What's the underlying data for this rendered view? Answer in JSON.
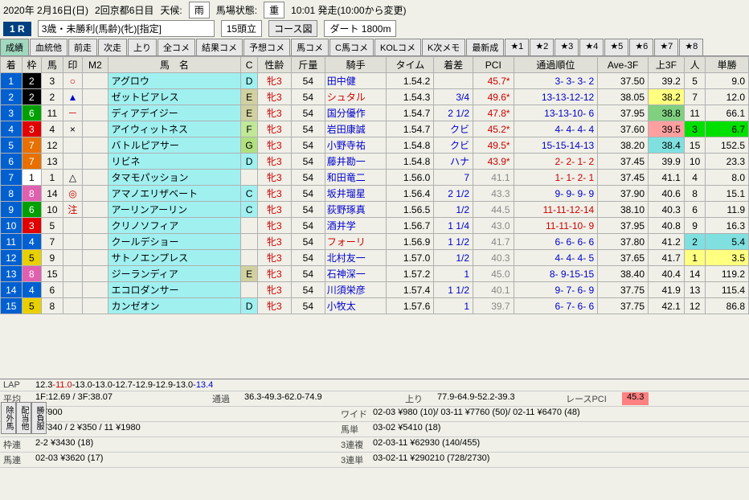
{
  "header": {
    "date": "2020年 2月16日(日)",
    "meeting": "2回京都6日目",
    "weather_label": "天候:",
    "weather": "雨",
    "track_label": "馬場状態:",
    "track": "重",
    "start_time": "10:01 発走(10:00から変更)",
    "race_num": "1 R",
    "condition": "3歳・未勝利(馬齢)(牝)[指定]",
    "head_count": "15頭立",
    "course_btn": "コース図",
    "surface": "ダート 1800m"
  },
  "tabs": [
    "成績",
    "血統他",
    "前走",
    "次走",
    "上り",
    "全コメ",
    "結果コメ",
    "予想コメ",
    "馬コメ",
    "C馬コメ",
    "KOLコメ",
    "K次メモ",
    "最新成",
    "★1",
    "★2",
    "★3",
    "★4",
    "★5",
    "★6",
    "★7",
    "★8"
  ],
  "columns": [
    "着",
    "枠",
    "馬",
    "印",
    "M2",
    "馬　名",
    "C",
    "性齢",
    "斤量",
    "騎手",
    "タイム",
    "着差",
    "PCI",
    "通過順位",
    "Ave-3F",
    "上3F",
    "人",
    "単勝"
  ],
  "rows": [
    {
      "pl": "1",
      "plbg": "#0060d0",
      "plfg": "#fff",
      "waku": "2",
      "wakuCls": "waku2",
      "uma": "3",
      "mark": "○",
      "m2": "",
      "name": "アグロウ",
      "c": "D",
      "cbg": "#a0f0f0",
      "sex": "牝3",
      "wt": "54",
      "jockey": "田中健",
      "time": "1.54.2",
      "diff": "",
      "pci": "45.7*",
      "pciRed": true,
      "pass": "3- 3- 3- 2",
      "ave": "37.50",
      "u3f": "39.2",
      "u3fbg": "",
      "pop": "5",
      "popbg": "",
      "odds": "9.0"
    },
    {
      "pl": "2",
      "plbg": "#0060d0",
      "plfg": "#fff",
      "waku": "2",
      "wakuCls": "waku2",
      "uma": "2",
      "mark": "▲",
      "m2": "",
      "name": "ゼットビアレス",
      "c": "E",
      "cbg": "#d0d0a0",
      "sex": "牝3",
      "wt": "54",
      "jockey": "シュタル",
      "time": "1.54.3",
      "diff": "3/4",
      "pci": "49.6*",
      "pciRed": true,
      "pass": "13-13-12-12",
      "ave": "38.05",
      "u3f": "38.2",
      "u3fbg": "#ffff80",
      "pop": "7",
      "popbg": "",
      "odds": "12.0"
    },
    {
      "pl": "3",
      "plbg": "#0060d0",
      "plfg": "#fff",
      "waku": "6",
      "wakuCls": "waku6",
      "uma": "11",
      "mark": "－",
      "m2": "",
      "name": "ディアデイジー",
      "c": "E",
      "cbg": "#d0d0a0",
      "sex": "牝3",
      "wt": "54",
      "jockey": "国分優作",
      "time": "1.54.7",
      "diff": "2 1/2",
      "pci": "47.8*",
      "pciRed": true,
      "pass": "13-13-10- 6",
      "ave": "37.95",
      "u3f": "38.8",
      "u3fbg": "#80d080",
      "pop": "11",
      "popbg": "",
      "odds": "66.1"
    },
    {
      "pl": "4",
      "plbg": "#0060d0",
      "plfg": "#fff",
      "waku": "3",
      "wakuCls": "waku3",
      "uma": "4",
      "mark": "×",
      "m2": "",
      "name": "アイウィットネス",
      "c": "F",
      "cbg": "#c0e898",
      "sex": "牝3",
      "wt": "54",
      "jockey": "岩田康誠",
      "time": "1.54.7",
      "diff": "クビ",
      "pci": "45.2*",
      "pciRed": true,
      "pass": "4- 4- 4- 4",
      "ave": "37.60",
      "u3f": "39.5",
      "u3fbg": "#ffa0a0",
      "pop": "3",
      "popbg": "#00e000",
      "odds": "6.7",
      "oddsbg": "#00e000"
    },
    {
      "pl": "5",
      "plbg": "#0060d0",
      "plfg": "#fff",
      "waku": "7",
      "wakuCls": "waku7",
      "uma": "12",
      "mark": "",
      "m2": "",
      "name": "バトルピアサー",
      "c": "G",
      "cbg": "#b0e080",
      "sex": "牝3",
      "wt": "54",
      "jockey": "小野寺祐",
      "time": "1.54.8",
      "diff": "クビ",
      "pci": "49.5*",
      "pciRed": true,
      "pass": "15-15-14-13",
      "ave": "38.20",
      "u3f": "38.4",
      "u3fbg": "#80e0e0",
      "pop": "15",
      "popbg": "",
      "odds": "152.5"
    },
    {
      "pl": "6",
      "plbg": "#0060d0",
      "plfg": "#fff",
      "waku": "7",
      "wakuCls": "waku7",
      "uma": "13",
      "mark": "",
      "m2": "",
      "name": "リビネ",
      "c": "D",
      "cbg": "#a0f0f0",
      "sex": "牝3",
      "wt": "54",
      "jockey": "藤井勘一",
      "time": "1.54.8",
      "diff": "ハナ",
      "pci": "43.9*",
      "pciRed": true,
      "pass": "2- 2- 1- 2",
      "ave": "37.45",
      "u3f": "39.9",
      "u3fbg": "",
      "pop": "10",
      "popbg": "",
      "odds": "23.3"
    },
    {
      "pl": "7",
      "plbg": "#0060d0",
      "plfg": "#fff",
      "waku": "1",
      "wakuCls": "waku1",
      "uma": "1",
      "mark": "△",
      "m2": "",
      "name": "タマモパッション",
      "c": "",
      "cbg": "",
      "sex": "牝3",
      "wt": "54",
      "jockey": "和田竜二",
      "time": "1.56.0",
      "diff": "7",
      "pci": "41.1",
      "pciRed": false,
      "pass": "1- 1- 2- 1",
      "ave": "37.45",
      "u3f": "41.1",
      "u3fbg": "",
      "pop": "4",
      "popbg": "",
      "odds": "8.0"
    },
    {
      "pl": "8",
      "plbg": "#0060d0",
      "plfg": "#fff",
      "waku": "8",
      "wakuCls": "waku8",
      "uma": "14",
      "mark": "◎",
      "m2": "",
      "name": "アマノエリザベート",
      "c": "C",
      "cbg": "#a0f0f0",
      "sex": "牝3",
      "wt": "54",
      "jockey": "坂井瑠星",
      "time": "1.56.4",
      "diff": "2 1/2",
      "pci": "43.3",
      "pciRed": false,
      "pass": "9- 9- 9- 9",
      "ave": "37.90",
      "u3f": "40.6",
      "u3fbg": "",
      "pop": "8",
      "popbg": "",
      "odds": "15.1"
    },
    {
      "pl": "9",
      "plbg": "#0060d0",
      "plfg": "#fff",
      "waku": "6",
      "wakuCls": "waku6",
      "uma": "10",
      "mark": "注",
      "m2": "",
      "name": "アーリンアーリン",
      "c": "C",
      "cbg": "#a0f0f0",
      "sex": "牝3",
      "wt": "54",
      "jockey": "荻野琢真",
      "time": "1.56.5",
      "diff": "1/2",
      "pci": "44.5",
      "pciRed": false,
      "pass": "11-11-12-14",
      "ave": "38.10",
      "u3f": "40.3",
      "u3fbg": "",
      "pop": "6",
      "popbg": "",
      "odds": "11.9"
    },
    {
      "pl": "10",
      "plbg": "#0060d0",
      "plfg": "#fff",
      "waku": "3",
      "wakuCls": "waku3",
      "uma": "5",
      "mark": "",
      "m2": "",
      "name": "クリノソフィア",
      "c": "",
      "cbg": "",
      "sex": "牝3",
      "wt": "54",
      "jockey": "酒井学",
      "time": "1.56.7",
      "diff": "1 1/4",
      "pci": "43.0",
      "pciRed": false,
      "pass": "11-11-10- 9",
      "ave": "37.95",
      "u3f": "40.8",
      "u3fbg": "",
      "pop": "9",
      "popbg": "",
      "odds": "16.3"
    },
    {
      "pl": "11",
      "plbg": "#0060d0",
      "plfg": "#fff",
      "waku": "4",
      "wakuCls": "waku4",
      "uma": "7",
      "mark": "",
      "m2": "",
      "name": "クールデショー",
      "c": "",
      "cbg": "",
      "sex": "牝3",
      "wt": "54",
      "jockey": "フォーリ",
      "time": "1.56.9",
      "diff": "1 1/2",
      "pci": "41.7",
      "pciRed": false,
      "pass": "6- 6- 6- 6",
      "ave": "37.80",
      "u3f": "41.2",
      "u3fbg": "",
      "pop": "2",
      "popbg": "#80e0e0",
      "odds": "5.4",
      "oddsbg": "#80e0e0"
    },
    {
      "pl": "12",
      "plbg": "#0060d0",
      "plfg": "#fff",
      "waku": "5",
      "wakuCls": "waku5",
      "uma": "9",
      "mark": "",
      "m2": "",
      "name": "サトノエンプレス",
      "c": "",
      "cbg": "",
      "sex": "牝3",
      "wt": "54",
      "jockey": "北村友一",
      "time": "1.57.0",
      "diff": "1/2",
      "pci": "40.3",
      "pciRed": false,
      "pass": "4- 4- 4- 5",
      "ave": "37.65",
      "u3f": "41.7",
      "u3fbg": "",
      "pop": "1",
      "popbg": "#ffff80",
      "odds": "3.5",
      "oddsbg": "#ffff80"
    },
    {
      "pl": "13",
      "plbg": "#0060d0",
      "plfg": "#fff",
      "waku": "8",
      "wakuCls": "waku8",
      "uma": "15",
      "mark": "",
      "m2": "",
      "name": "ジーランディア",
      "c": "E",
      "cbg": "#d0d0a0",
      "sex": "牝3",
      "wt": "54",
      "jockey": "石神深一",
      "time": "1.57.2",
      "diff": "1",
      "pci": "45.0",
      "pciRed": false,
      "pass": "8- 9-15-15",
      "ave": "38.40",
      "u3f": "40.4",
      "u3fbg": "",
      "pop": "14",
      "popbg": "",
      "odds": "119.2"
    },
    {
      "pl": "14",
      "plbg": "#0060d0",
      "plfg": "#fff",
      "waku": "4",
      "wakuCls": "waku4",
      "uma": "6",
      "mark": "",
      "m2": "",
      "name": "エコロダンサー",
      "c": "",
      "cbg": "",
      "sex": "牝3",
      "wt": "54",
      "jockey": "川須栄彦",
      "time": "1.57.4",
      "diff": "1 1/2",
      "pci": "40.1",
      "pciRed": false,
      "pass": "9- 7- 6- 9",
      "ave": "37.75",
      "u3f": "41.9",
      "u3fbg": "",
      "pop": "13",
      "popbg": "",
      "odds": "115.4"
    },
    {
      "pl": "15",
      "plbg": "#0060d0",
      "plfg": "#fff",
      "waku": "5",
      "wakuCls": "waku5",
      "uma": "8",
      "mark": "",
      "m2": "",
      "name": "カンゼオン",
      "c": "D",
      "cbg": "#a0f0f0",
      "sex": "牝3",
      "wt": "54",
      "jockey": "小牧太",
      "time": "1.57.6",
      "diff": "1",
      "pci": "39.7",
      "pciRed": false,
      "pass": "6- 7- 6- 6",
      "ave": "37.75",
      "u3f": "42.1",
      "u3fbg": "",
      "pop": "12",
      "popbg": "",
      "odds": "86.8"
    }
  ],
  "footer": {
    "lap_label": "LAP",
    "lap": [
      "12.3",
      "-11.0",
      "-13.0",
      "-13.0",
      "-12.7",
      "-12.9",
      "-12.9",
      "-13.0",
      "-13.4"
    ],
    "lap_cls": [
      "",
      "lap-fast",
      "",
      "",
      "",
      "",
      "",
      "",
      "lap-slow"
    ],
    "avg_label": "平均",
    "avg": "1F:12.69 / 3F:38.07",
    "pass_label": "通過",
    "pass": "36.3-49.3-62.0-74.9",
    "agari_label": "上り",
    "agari": "77.9-64.9-52.2-39.3",
    "racepci_label": "レースPCI",
    "racepci": "45.3",
    "tan_label": "単勝",
    "tan": "3  ¥900",
    "wide_label": "ワイド",
    "wide": "02-03 ¥980 (10)/ 03-11 ¥7760 (50)/ 02-11 ¥6470 (48)",
    "fuku_label": "複勝",
    "fuku": "3  ¥340 / 2  ¥350 / 11  ¥1980",
    "umatan_label": "馬単",
    "umatan": "03-02 ¥5410 (18)",
    "wakuren_label": "枠連",
    "wakuren": "2-2 ¥3430 (18)",
    "sanfuku_label": "3連複",
    "sanfuku": "02-03-11 ¥62930 (140/455)",
    "umaren_label": "馬連",
    "umaren": "02-03 ¥3620 (17)",
    "santan_label": "3連単",
    "santan": "03-02-11 ¥290210 (728/2730)",
    "side1": "除外馬",
    "side2": "配当他",
    "side3": "勝負服"
  }
}
